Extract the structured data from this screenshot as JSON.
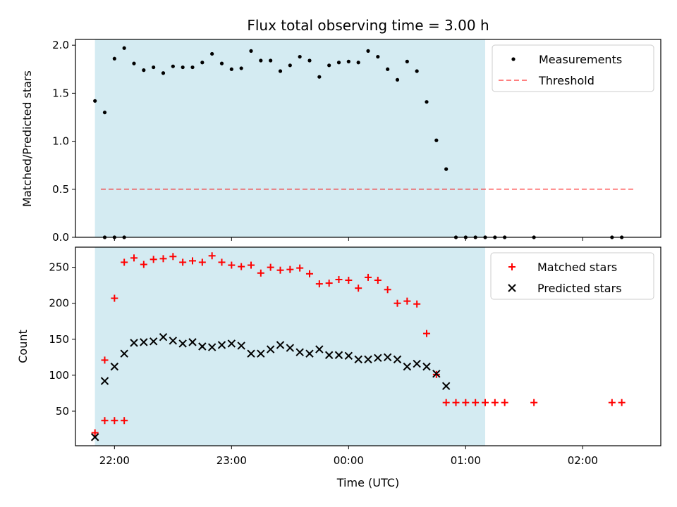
{
  "title": "Flux total observing time = 3.00 h",
  "colors": {
    "shade": "#add8e6",
    "measurement": "#000000",
    "threshold": "#ff0000",
    "matched": "#ff0000",
    "predicted": "#000000"
  },
  "chart_data": [
    {
      "type": "scatter",
      "ylabel": "Matched/Predicted stars",
      "xlabel": "",
      "ylim": [
        0,
        2.06
      ],
      "yticks": [
        0,
        0.5,
        1.0,
        1.5,
        2.0
      ],
      "ytick_labels": [
        "0.0",
        "0.5",
        "1.0",
        "1.5",
        "2.0"
      ],
      "shaded_interval": [
        "21:50",
        "01:10"
      ],
      "threshold": {
        "name": "Threshold",
        "y": 0.5,
        "x_range": [
          "21:53",
          "02:27"
        ]
      },
      "legend": {
        "placement": "top-right",
        "entries": [
          "Measurements",
          "Threshold"
        ]
      },
      "series": [
        {
          "name": "Measurements",
          "x": [
            "21:55",
            "22:00",
            "22:05",
            "21:50",
            "21:55",
            "22:00",
            "22:05",
            "22:10",
            "22:15",
            "22:20",
            "22:25",
            "22:30",
            "22:35",
            "22:40",
            "22:45",
            "22:50",
            "22:55",
            "23:00",
            "23:05",
            "23:10",
            "23:15",
            "23:20",
            "23:25",
            "23:30",
            "23:35",
            "23:40",
            "23:45",
            "23:50",
            "23:55",
            "00:00",
            "00:05",
            "00:10",
            "00:15",
            "00:20",
            "00:25",
            "00:30",
            "00:35",
            "00:40",
            "00:45",
            "00:50",
            "00:55",
            "01:00",
            "01:05",
            "01:10",
            "01:15",
            "01:20",
            "01:35",
            "02:15",
            "02:20"
          ],
          "values": [
            0,
            0,
            0,
            1.42,
            1.3,
            1.86,
            1.97,
            1.81,
            1.74,
            1.77,
            1.71,
            1.78,
            1.77,
            1.77,
            1.82,
            1.91,
            1.81,
            1.75,
            1.76,
            1.94,
            1.84,
            1.84,
            1.73,
            1.79,
            1.88,
            1.84,
            1.67,
            1.79,
            1.82,
            1.83,
            1.82,
            1.94,
            1.88,
            1.75,
            1.64,
            1.83,
            1.73,
            1.41,
            1.01,
            0.71,
            0,
            0,
            0,
            0,
            0,
            0,
            0,
            0,
            0
          ]
        }
      ]
    },
    {
      "type": "scatter",
      "ylabel": "Count",
      "xlabel": "Time (UTC)",
      "ylim": [
        2,
        278
      ],
      "yticks": [
        50,
        100,
        150,
        200,
        250
      ],
      "ytick_labels": [
        "50",
        "100",
        "150",
        "200",
        "250"
      ],
      "xticks": [
        "22:00",
        "23:00",
        "00:00",
        "01:00",
        "02:00"
      ],
      "shaded_interval": [
        "21:50",
        "01:10"
      ],
      "legend": {
        "placement": "top-right",
        "entries": [
          "Matched stars",
          "Predicted stars"
        ]
      },
      "series": [
        {
          "name": "Matched stars",
          "x": [
            "21:55",
            "22:00",
            "22:05",
            "21:50",
            "21:55",
            "22:00",
            "22:05",
            "22:10",
            "22:15",
            "22:20",
            "22:25",
            "22:30",
            "22:35",
            "22:40",
            "22:45",
            "22:50",
            "22:55",
            "23:00",
            "23:05",
            "23:10",
            "23:15",
            "23:20",
            "23:25",
            "23:30",
            "23:35",
            "23:40",
            "23:45",
            "23:50",
            "23:55",
            "00:00",
            "00:05",
            "00:10",
            "00:15",
            "00:20",
            "00:25",
            "00:30",
            "00:35",
            "00:40",
            "00:45",
            "00:50",
            "00:55",
            "01:00",
            "01:05",
            "01:10",
            "01:15",
            "01:20",
            "01:35",
            "02:15",
            "02:20"
          ],
          "values": [
            37,
            37,
            37,
            20,
            121,
            207,
            257,
            263,
            254,
            261,
            262,
            265,
            257,
            259,
            257,
            266,
            257,
            253,
            251,
            253,
            242,
            250,
            246,
            247,
            249,
            241,
            227,
            228,
            233,
            232,
            221,
            236,
            232,
            219,
            200,
            203,
            199,
            158,
            101,
            62,
            62,
            62,
            62,
            62,
            62,
            62,
            62,
            62,
            62
          ]
        },
        {
          "name": "Predicted stars",
          "x": [
            "21:50",
            "21:55",
            "22:00",
            "22:05",
            "22:10",
            "22:15",
            "22:20",
            "22:25",
            "22:30",
            "22:35",
            "22:40",
            "22:45",
            "22:50",
            "22:55",
            "23:00",
            "23:05",
            "23:10",
            "23:15",
            "23:20",
            "23:25",
            "23:30",
            "23:35",
            "23:40",
            "23:45",
            "23:50",
            "23:55",
            "00:00",
            "00:05",
            "00:10",
            "00:15",
            "00:20",
            "00:25",
            "00:30",
            "00:35",
            "00:40",
            "00:45",
            "00:50",
            "00:55",
            "01:00",
            "01:05",
            "01:10"
          ],
          "values": [
            14,
            92,
            112,
            130,
            145,
            146,
            147,
            153,
            148,
            144,
            146,
            140,
            139,
            142,
            144,
            141,
            130,
            130,
            136,
            142,
            138,
            132,
            130,
            136,
            128,
            128,
            127,
            122,
            122,
            124,
            125,
            122,
            112,
            116,
            112,
            102,
            85,
            null,
            null,
            null,
            null
          ]
        }
      ]
    }
  ]
}
